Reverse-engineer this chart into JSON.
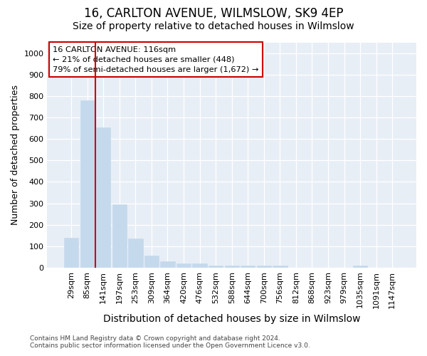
{
  "title": "16, CARLTON AVENUE, WILMSLOW, SK9 4EP",
  "subtitle": "Size of property relative to detached houses in Wilmslow",
  "xlabel": "Distribution of detached houses by size in Wilmslow",
  "ylabel": "Number of detached properties",
  "categories": [
    "29sqm",
    "85sqm",
    "141sqm",
    "197sqm",
    "253sqm",
    "309sqm",
    "364sqm",
    "420sqm",
    "476sqm",
    "532sqm",
    "588sqm",
    "644sqm",
    "700sqm",
    "756sqm",
    "812sqm",
    "868sqm",
    "923sqm",
    "979sqm",
    "1035sqm",
    "1091sqm",
    "1147sqm"
  ],
  "values": [
    140,
    780,
    655,
    295,
    137,
    57,
    30,
    18,
    18,
    10,
    8,
    8,
    8,
    8,
    0,
    0,
    0,
    0,
    8,
    0,
    0
  ],
  "bar_color": "#c5d9ed",
  "bar_edge_color": "#c5d9ed",
  "vline_color": "#cc0000",
  "vline_x": 1.5,
  "annotation_text": "16 CARLTON AVENUE: 116sqm\n← 21% of detached houses are smaller (448)\n79% of semi-detached houses are larger (1,672) →",
  "ylim": [
    0,
    1050
  ],
  "yticks": [
    0,
    100,
    200,
    300,
    400,
    500,
    600,
    700,
    800,
    900,
    1000
  ],
  "plot_bg_color": "#e8eef6",
  "footer_text": "Contains HM Land Registry data © Crown copyright and database right 2024.\nContains public sector information licensed under the Open Government Licence v3.0.",
  "title_fontsize": 12,
  "subtitle_fontsize": 10,
  "ylabel_fontsize": 9,
  "xlabel_fontsize": 10
}
